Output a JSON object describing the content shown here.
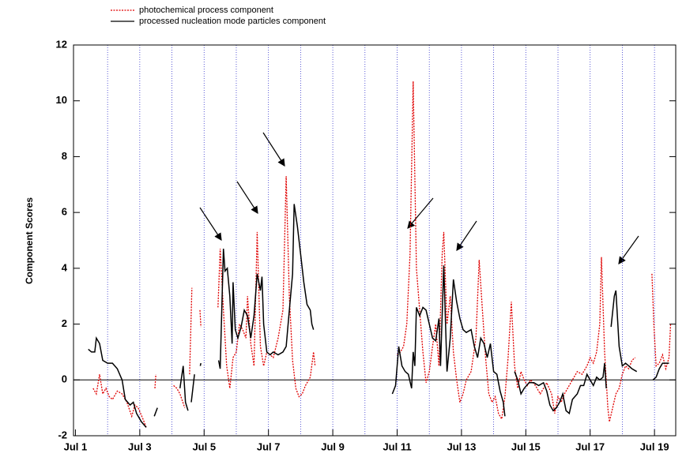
{
  "chart_data": {
    "type": "line",
    "y_label": "Component Scores",
    "xlim": [
      0.94,
      19.66
    ],
    "ylim": [
      -2,
      12
    ],
    "yticks": [
      -2,
      0,
      2,
      4,
      6,
      8,
      10,
      12
    ],
    "xticks": [
      {
        "value": 1,
        "label": "Jul 1"
      },
      {
        "value": 3,
        "label": "Jul 3"
      },
      {
        "value": 5,
        "label": "Jul 5"
      },
      {
        "value": 7,
        "label": "Jul 7"
      },
      {
        "value": 9,
        "label": "Jul 9"
      },
      {
        "value": 11,
        "label": "Jul 11"
      },
      {
        "value": 13,
        "label": "Jul 13"
      },
      {
        "value": 15,
        "label": "Jul 15"
      },
      {
        "value": 17,
        "label": "Jul 17"
      },
      {
        "value": 19,
        "label": "Jul 19"
      }
    ],
    "xgrid": [
      2,
      3,
      4,
      5,
      6,
      7,
      8,
      9,
      10,
      11,
      12,
      13,
      14,
      15,
      16,
      17,
      18,
      19
    ],
    "zero_line": 0,
    "series": [
      {
        "name": "photochemical process component",
        "color": "#e00000",
        "style": "dotted",
        "x": [
          1.55,
          1.65,
          1.75,
          1.85,
          1.95,
          2.05,
          2.15,
          2.3,
          2.45,
          2.6,
          2.75,
          2.85,
          2.95,
          3.1,
          3.2,
          3.3,
          3.47,
          3.5,
          3.8,
          4.05,
          4.15,
          4.25,
          4.4,
          4.48,
          4.55,
          4.62,
          4.75,
          4.87,
          4.9,
          5.2,
          5.43,
          5.5,
          5.6,
          5.7,
          5.8,
          5.9,
          6.0,
          6.1,
          6.2,
          6.3,
          6.35,
          6.45,
          6.55,
          6.65,
          6.75,
          6.85,
          6.95,
          7.05,
          7.15,
          7.3,
          7.45,
          7.55,
          7.65,
          7.75,
          7.85,
          7.95,
          8.05,
          8.15,
          8.3,
          8.4,
          8.45,
          9.7,
          11.0,
          11.1,
          11.2,
          11.3,
          11.4,
          11.5,
          11.6,
          11.7,
          11.8,
          11.9,
          12.0,
          12.1,
          12.2,
          12.3,
          12.4,
          12.45,
          12.55,
          12.65,
          12.75,
          12.85,
          12.95,
          13.05,
          13.15,
          13.3,
          13.45,
          13.55,
          13.65,
          13.75,
          13.85,
          13.95,
          14.05,
          14.15,
          14.25,
          14.35,
          14.45,
          14.55,
          14.65,
          14.75,
          14.85,
          14.95,
          15.05,
          15.15,
          15.3,
          15.45,
          15.55,
          15.65,
          15.8,
          15.9,
          16.0,
          16.1,
          16.2,
          16.3,
          16.45,
          16.6,
          16.75,
          16.9,
          17.0,
          17.1,
          17.2,
          17.3,
          17.35,
          17.45,
          17.55,
          17.6,
          17.7,
          17.8,
          17.9,
          18.0,
          18.1,
          18.2,
          18.3,
          18.4,
          18.6,
          18.92,
          18.98,
          19.05,
          19.15,
          19.25,
          19.35,
          19.45,
          19.5
        ],
        "values": [
          -0.3,
          -0.5,
          0.2,
          -0.5,
          -0.3,
          -0.6,
          -0.7,
          -0.4,
          -0.5,
          -0.8,
          -1.3,
          -0.9,
          -1.0,
          -1.4,
          -1.7,
          null,
          -0.3,
          0.2,
          null,
          -0.2,
          -0.3,
          -0.5,
          -1.0,
          null,
          0.2,
          3.3,
          null,
          2.5,
          1.9,
          null,
          2.6,
          4.7,
          2.5,
          0.5,
          -0.3,
          0.8,
          1.0,
          2.0,
          1.8,
          1.5,
          3.0,
          1.3,
          0.5,
          5.3,
          1.2,
          0.5,
          1.0,
          0.9,
          0.8,
          1.5,
          2.5,
          7.3,
          3.0,
          0.7,
          -0.3,
          -0.6,
          -0.5,
          -0.2,
          0.1,
          1.0,
          0.5,
          null,
          0.9,
          1.0,
          1.2,
          2.0,
          4.5,
          10.7,
          4.0,
          2.5,
          1.0,
          -0.1,
          0.3,
          1.2,
          2.0,
          0.5,
          4.5,
          5.3,
          2.0,
          3.0,
          1.0,
          0.0,
          -0.8,
          -0.5,
          0.0,
          0.3,
          1.5,
          4.3,
          2.5,
          0.8,
          -0.5,
          -0.8,
          -0.6,
          -1.2,
          -1.4,
          -0.6,
          0.8,
          2.8,
          0.5,
          -0.3,
          0.3,
          0.0,
          -0.2,
          0.0,
          -0.2,
          -0.5,
          -0.3,
          -0.1,
          -0.5,
          -1.2,
          -0.6,
          -0.8,
          -0.5,
          -0.3,
          0.0,
          0.3,
          0.2,
          0.5,
          0.8,
          0.6,
          1.0,
          2.0,
          4.4,
          1.0,
          -1.0,
          -1.5,
          -1.0,
          -0.5,
          -0.3,
          0.2,
          0.5,
          0.4,
          0.7,
          0.8,
          null,
          3.8,
          2.0,
          0.5,
          0.6,
          0.9,
          0.4,
          0.8,
          2.0
        ]
      },
      {
        "name": "processed nucleation mode particles component",
        "color": "#000000",
        "style": "solid",
        "x": [
          1.4,
          1.5,
          1.6,
          1.65,
          1.75,
          1.85,
          2.0,
          2.15,
          2.3,
          2.45,
          2.55,
          2.7,
          2.8,
          2.9,
          3.05,
          3.2,
          3.3,
          3.45,
          3.55,
          3.9,
          4.25,
          4.35,
          4.42,
          4.5,
          4.55,
          4.6,
          4.7,
          4.8,
          4.88,
          4.9,
          5.2,
          5.45,
          5.5,
          5.6,
          5.65,
          5.72,
          5.8,
          5.87,
          5.9,
          5.97,
          6.05,
          6.15,
          6.25,
          6.35,
          6.45,
          6.55,
          6.65,
          6.75,
          6.8,
          6.85,
          6.95,
          7.05,
          7.15,
          7.3,
          7.45,
          7.55,
          7.65,
          7.75,
          7.8,
          7.9,
          8.0,
          8.1,
          8.2,
          8.3,
          8.35,
          8.4,
          9.6,
          10.85,
          10.95,
          11.05,
          11.15,
          11.25,
          11.35,
          11.45,
          11.5,
          11.55,
          11.6,
          11.7,
          11.8,
          11.9,
          12.0,
          12.1,
          12.2,
          12.3,
          12.35,
          12.45,
          12.55,
          12.65,
          12.75,
          12.85,
          12.95,
          13.05,
          13.15,
          13.3,
          13.4,
          13.5,
          13.6,
          13.7,
          13.8,
          13.9,
          14.0,
          14.1,
          14.2,
          14.3,
          14.35,
          14.5,
          14.65,
          14.75,
          14.85,
          14.95,
          15.1,
          15.25,
          15.4,
          15.55,
          15.65,
          15.75,
          15.85,
          15.95,
          16.05,
          16.15,
          16.25,
          16.35,
          16.45,
          16.6,
          16.7,
          16.8,
          16.9,
          17.0,
          17.1,
          17.2,
          17.3,
          17.4,
          17.45,
          17.5,
          17.58,
          17.65,
          17.75,
          17.8,
          17.9,
          18.0,
          18.1,
          18.2,
          18.3,
          18.45,
          18.7,
          18.95,
          19.05,
          19.15,
          19.25,
          19.35,
          19.45
        ],
        "values": [
          1.1,
          1.0,
          1.0,
          1.5,
          1.3,
          0.7,
          0.6,
          0.6,
          0.4,
          0.0,
          -0.7,
          -0.9,
          -0.8,
          -1.2,
          -1.5,
          -1.7,
          null,
          -1.3,
          -1.0,
          null,
          -0.3,
          0.5,
          -0.8,
          -1.1,
          null,
          -0.8,
          0.2,
          null,
          0.5,
          0.6,
          null,
          0.7,
          0.4,
          4.7,
          3.9,
          4.0,
          3.0,
          1.3,
          3.5,
          1.8,
          1.5,
          1.9,
          2.5,
          2.3,
          1.5,
          2.3,
          3.8,
          3.2,
          3.7,
          2.0,
          1.0,
          0.9,
          1.0,
          0.9,
          1.0,
          1.2,
          2.5,
          3.8,
          6.3,
          5.5,
          4.5,
          3.5,
          2.7,
          2.5,
          2.0,
          1.8,
          null,
          -0.5,
          -0.2,
          1.2,
          0.5,
          0.3,
          0.2,
          -0.3,
          1.0,
          0.5,
          2.6,
          2.3,
          2.6,
          2.5,
          2.0,
          1.5,
          1.4,
          2.2,
          0.5,
          4.1,
          0.3,
          1.5,
          3.6,
          2.8,
          2.2,
          1.8,
          1.7,
          1.8,
          1.2,
          0.8,
          1.5,
          1.3,
          0.8,
          1.3,
          0.3,
          0.2,
          -0.4,
          -0.8,
          -1.3,
          null,
          0.3,
          0.0,
          -0.5,
          -0.3,
          -0.1,
          -0.1,
          -0.2,
          -0.1,
          -0.4,
          -0.9,
          -1.1,
          -1.0,
          -0.8,
          -0.5,
          -1.1,
          -1.2,
          -0.7,
          -0.5,
          -0.2,
          -0.2,
          0.2,
          0.0,
          -0.2,
          0.1,
          0.0,
          0.1,
          0.6,
          -0.3,
          null,
          1.9,
          3.0,
          3.2,
          1.2,
          0.5,
          0.6,
          0.5,
          0.4,
          0.3,
          null,
          0.0,
          0.1,
          0.4,
          0.6,
          0.6,
          0.6
        ]
      }
    ]
  }
}
